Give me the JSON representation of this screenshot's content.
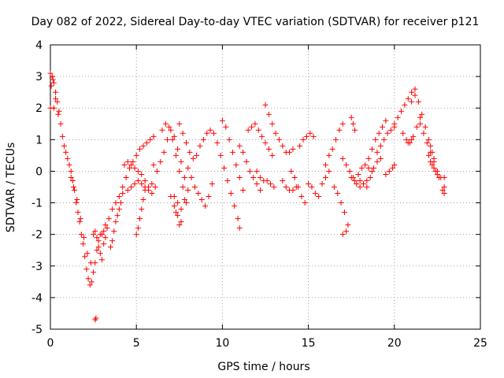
{
  "chart_data": {
    "type": "scatter",
    "title": "Day 082 of 2022, Sidereal Day-to-day VTEC variation (SDTVAR) for receiver p121",
    "xlabel": "GPS time / hours",
    "ylabel": "SDTVAR / TECUs",
    "xlim": [
      0,
      25
    ],
    "ylim": [
      -5,
      4
    ],
    "xticks": [
      0,
      5,
      10,
      15,
      20,
      25
    ],
    "yticks": [
      -5,
      -4,
      -3,
      -2,
      -1,
      0,
      1,
      2,
      3,
      4
    ],
    "xtick_labels": [
      "0",
      "5",
      "10",
      "15",
      "20",
      "25"
    ],
    "ytick_labels": [
      "-5",
      "-4",
      "-3",
      "-2",
      "-1",
      "0",
      "1",
      "2",
      "3",
      "4"
    ],
    "grid": true,
    "marker": "+",
    "color": "#ff0000",
    "series": [
      {
        "name": "SDTVAR",
        "points": [
          [
            0.0,
            3.1
          ],
          [
            0.1,
            3.0
          ],
          [
            0.2,
            2.8
          ],
          [
            0.3,
            2.5
          ],
          [
            0.4,
            2.2
          ],
          [
            0.5,
            1.9
          ],
          [
            0.6,
            1.5
          ],
          [
            0.7,
            1.1
          ],
          [
            0.8,
            0.8
          ],
          [
            0.9,
            0.6
          ],
          [
            0.0,
            2.0
          ],
          [
            0.2,
            2.0
          ],
          [
            0.05,
            2.7
          ],
          [
            0.15,
            2.9
          ],
          [
            0.3,
            2.3
          ],
          [
            0.45,
            1.8
          ],
          [
            1.0,
            0.4
          ],
          [
            1.1,
            0.2
          ],
          [
            1.2,
            0.0
          ],
          [
            1.3,
            -0.3
          ],
          [
            1.4,
            -0.6
          ],
          [
            1.5,
            -1.0
          ],
          [
            1.6,
            -1.3
          ],
          [
            1.7,
            -1.6
          ],
          [
            1.8,
            -2.0
          ],
          [
            1.9,
            -2.3
          ],
          [
            2.0,
            -2.7
          ],
          [
            2.1,
            -3.1
          ],
          [
            2.2,
            -3.4
          ],
          [
            2.3,
            -3.6
          ],
          [
            2.4,
            -3.5
          ],
          [
            2.5,
            -3.2
          ],
          [
            2.6,
            -2.9
          ],
          [
            2.7,
            -2.5
          ],
          [
            2.8,
            -2.2
          ],
          [
            2.9,
            -2.0
          ],
          [
            1.2,
            -0.2
          ],
          [
            1.35,
            -0.5
          ],
          [
            1.55,
            -0.9
          ],
          [
            1.75,
            -1.5
          ],
          [
            1.95,
            -2.1
          ],
          [
            2.15,
            -2.6
          ],
          [
            2.35,
            -2.9
          ],
          [
            2.6,
            -4.7
          ],
          [
            2.65,
            -4.65
          ],
          [
            2.5,
            -2.0
          ],
          [
            2.6,
            -1.9
          ],
          [
            2.7,
            -2.1
          ],
          [
            2.8,
            -2.4
          ],
          [
            2.9,
            -2.6
          ],
          [
            3.0,
            -2.8
          ],
          [
            3.1,
            -2.3
          ],
          [
            3.2,
            -2.1
          ],
          [
            3.3,
            -1.8
          ],
          [
            3.0,
            -2.0
          ],
          [
            3.1,
            -1.9
          ],
          [
            3.2,
            -1.7
          ],
          [
            3.4,
            -1.5
          ],
          [
            3.6,
            -1.2
          ],
          [
            3.8,
            -1.0
          ],
          [
            4.0,
            -0.8
          ],
          [
            4.2,
            -0.7
          ],
          [
            3.5,
            -2.4
          ],
          [
            3.6,
            -2.2
          ],
          [
            3.7,
            -1.9
          ],
          [
            3.8,
            -1.6
          ],
          [
            3.9,
            -1.4
          ],
          [
            4.0,
            -1.2
          ],
          [
            4.1,
            -1.0
          ],
          [
            4.2,
            -0.5
          ],
          [
            4.4,
            -0.2
          ],
          [
            4.6,
            0.1
          ],
          [
            4.8,
            0.3
          ],
          [
            5.0,
            0.5
          ],
          [
            5.2,
            0.7
          ],
          [
            5.4,
            0.8
          ],
          [
            5.6,
            0.9
          ],
          [
            5.8,
            1.0
          ],
          [
            6.0,
            1.1
          ],
          [
            4.3,
            0.2
          ],
          [
            4.5,
            0.3
          ],
          [
            4.7,
            0.2
          ],
          [
            4.9,
            0.1
          ],
          [
            5.1,
            0.0
          ],
          [
            5.3,
            -0.1
          ],
          [
            5.5,
            -0.3
          ],
          [
            5.7,
            -0.5
          ],
          [
            5.9,
            -0.4
          ],
          [
            4.5,
            -0.6
          ],
          [
            4.7,
            -0.5
          ],
          [
            4.9,
            -0.4
          ],
          [
            5.1,
            -0.3
          ],
          [
            5.3,
            -0.4
          ],
          [
            5.5,
            -0.5
          ],
          [
            5.7,
            -0.6
          ],
          [
            5.9,
            -0.7
          ],
          [
            6.1,
            -0.5
          ],
          [
            5.0,
            -2.0
          ],
          [
            5.1,
            -1.8
          ],
          [
            5.2,
            -1.5
          ],
          [
            5.3,
            -1.2
          ],
          [
            5.4,
            -0.9
          ],
          [
            5.5,
            -0.6
          ],
          [
            6.0,
            0.2
          ],
          [
            6.2,
            0.0
          ],
          [
            6.4,
            0.3
          ],
          [
            6.6,
            0.6
          ],
          [
            6.8,
            1.0
          ],
          [
            7.0,
            1.3
          ],
          [
            7.2,
            1.1
          ],
          [
            7.4,
            0.7
          ],
          [
            7.6,
            0.3
          ],
          [
            7.8,
            -0.2
          ],
          [
            6.5,
            1.3
          ],
          [
            6.7,
            1.5
          ],
          [
            6.9,
            1.4
          ],
          [
            7.1,
            1.0
          ],
          [
            7.3,
            0.5
          ],
          [
            7.5,
            0.0
          ],
          [
            7.7,
            -0.5
          ],
          [
            7.9,
            -1.0
          ],
          [
            7.0,
            -0.8
          ],
          [
            7.2,
            -1.1
          ],
          [
            7.4,
            -1.4
          ],
          [
            7.6,
            -1.6
          ],
          [
            7.5,
            -1.7
          ],
          [
            7.3,
            -1.3
          ],
          [
            7.5,
            1.5
          ],
          [
            7.7,
            1.2
          ],
          [
            7.9,
            0.9
          ],
          [
            8.1,
            0.6
          ],
          [
            8.3,
            0.4
          ],
          [
            8.5,
            0.5
          ],
          [
            8.7,
            0.8
          ],
          [
            8.9,
            1.0
          ],
          [
            9.1,
            1.2
          ],
          [
            9.3,
            1.3
          ],
          [
            8.0,
            0.1
          ],
          [
            8.2,
            -0.2
          ],
          [
            8.4,
            -0.5
          ],
          [
            8.6,
            -0.7
          ],
          [
            8.8,
            -0.9
          ],
          [
            9.0,
            -1.1
          ],
          [
            9.2,
            -0.8
          ],
          [
            9.4,
            -0.4
          ],
          [
            7.2,
            -0.8
          ],
          [
            7.4,
            -1.0
          ],
          [
            7.6,
            -1.2
          ],
          [
            7.8,
            -0.9
          ],
          [
            8.0,
            -0.6
          ],
          [
            9.5,
            1.2
          ],
          [
            9.7,
            0.9
          ],
          [
            9.9,
            0.5
          ],
          [
            10.1,
            0.1
          ],
          [
            10.3,
            -0.3
          ],
          [
            10.5,
            -0.7
          ],
          [
            10.7,
            -1.1
          ],
          [
            10.9,
            -1.5
          ],
          [
            11.0,
            -1.8
          ],
          [
            10.0,
            1.6
          ],
          [
            10.2,
            1.4
          ],
          [
            10.4,
            1.0
          ],
          [
            10.6,
            0.6
          ],
          [
            10.8,
            0.2
          ],
          [
            11.0,
            -0.2
          ],
          [
            11.2,
            -0.6
          ],
          [
            11.0,
            0.8
          ],
          [
            11.2,
            0.6
          ],
          [
            11.4,
            0.3
          ],
          [
            11.6,
            0.0
          ],
          [
            11.8,
            -0.2
          ],
          [
            12.0,
            -0.4
          ],
          [
            12.2,
            -0.6
          ],
          [
            11.5,
            1.3
          ],
          [
            11.7,
            1.4
          ],
          [
            11.9,
            1.5
          ],
          [
            12.1,
            1.3
          ],
          [
            12.3,
            1.1
          ],
          [
            12.5,
            0.9
          ],
          [
            12.7,
            0.7
          ],
          [
            12.9,
            0.5
          ],
          [
            12.5,
            2.1
          ],
          [
            12.7,
            1.8
          ],
          [
            12.9,
            1.5
          ],
          [
            13.1,
            1.2
          ],
          [
            13.3,
            1.0
          ],
          [
            13.5,
            0.8
          ],
          [
            13.7,
            0.6
          ],
          [
            13.9,
            0.6
          ],
          [
            14.1,
            0.7
          ],
          [
            12.0,
            0.0
          ],
          [
            12.2,
            -0.2
          ],
          [
            12.4,
            -0.3
          ],
          [
            12.6,
            -0.3
          ],
          [
            12.8,
            -0.4
          ],
          [
            13.0,
            -0.5
          ],
          [
            14.0,
            0.0
          ],
          [
            14.2,
            -0.2
          ],
          [
            14.4,
            -0.5
          ],
          [
            14.6,
            -0.8
          ],
          [
            14.8,
            -1.0
          ],
          [
            14.5,
            0.8
          ],
          [
            14.7,
            1.0
          ],
          [
            14.9,
            1.1
          ],
          [
            15.1,
            1.2
          ],
          [
            15.3,
            1.1
          ],
          [
            13.5,
            -0.3
          ],
          [
            13.7,
            -0.5
          ],
          [
            13.9,
            -0.6
          ],
          [
            14.1,
            -0.6
          ],
          [
            14.3,
            -0.5
          ],
          [
            15.0,
            -0.4
          ],
          [
            15.2,
            -0.5
          ],
          [
            15.4,
            -0.7
          ],
          [
            15.6,
            -0.8
          ],
          [
            15.8,
            -0.4
          ],
          [
            16.0,
            -0.2
          ],
          [
            16.2,
            0.0
          ],
          [
            16.0,
            0.2
          ],
          [
            16.2,
            0.5
          ],
          [
            16.4,
            0.7
          ],
          [
            16.6,
            1.0
          ],
          [
            16.8,
            1.3
          ],
          [
            17.0,
            1.5
          ],
          [
            16.5,
            -0.5
          ],
          [
            16.7,
            -0.7
          ],
          [
            16.9,
            -1.0
          ],
          [
            17.1,
            -1.3
          ],
          [
            17.3,
            -1.7
          ],
          [
            17.2,
            -1.9
          ],
          [
            17.0,
            -2.0
          ],
          [
            17.5,
            1.7
          ],
          [
            17.6,
            1.5
          ],
          [
            17.7,
            1.3
          ],
          [
            17.0,
            0.4
          ],
          [
            17.2,
            0.2
          ],
          [
            17.4,
            0.0
          ],
          [
            17.6,
            -0.2
          ],
          [
            17.8,
            -0.4
          ],
          [
            18.0,
            -0.5
          ],
          [
            18.2,
            -0.4
          ],
          [
            18.4,
            -0.3
          ],
          [
            17.5,
            -0.2
          ],
          [
            17.7,
            -0.3
          ],
          [
            17.9,
            -0.1
          ],
          [
            18.1,
            0.1
          ],
          [
            18.3,
            0.2
          ],
          [
            18.5,
            0.1
          ],
          [
            18.7,
            0.0
          ],
          [
            18.5,
            0.4
          ],
          [
            18.7,
            0.7
          ],
          [
            18.9,
            1.0
          ],
          [
            19.1,
            1.2
          ],
          [
            19.3,
            1.4
          ],
          [
            19.5,
            1.6
          ],
          [
            18.0,
            -0.3
          ],
          [
            18.2,
            -0.4
          ],
          [
            18.4,
            -0.5
          ],
          [
            18.6,
            -0.2
          ],
          [
            18.8,
            0.1
          ],
          [
            19.0,
            0.3
          ],
          [
            19.2,
            0.4
          ],
          [
            19.0,
            0.6
          ],
          [
            19.2,
            0.8
          ],
          [
            19.4,
            1.0
          ],
          [
            19.6,
            1.2
          ],
          [
            19.8,
            1.3
          ],
          [
            20.0,
            1.4
          ],
          [
            19.5,
            -0.1
          ],
          [
            19.7,
            0.0
          ],
          [
            19.9,
            0.1
          ],
          [
            20.0,
            0.2
          ],
          [
            20.0,
            1.5
          ],
          [
            20.2,
            1.7
          ],
          [
            20.4,
            1.9
          ],
          [
            20.6,
            2.1
          ],
          [
            20.8,
            2.3
          ],
          [
            21.0,
            2.5
          ],
          [
            21.2,
            2.6
          ],
          [
            20.5,
            1.2
          ],
          [
            20.7,
            1.0
          ],
          [
            20.9,
            0.9
          ],
          [
            21.1,
            1.1
          ],
          [
            21.3,
            1.4
          ],
          [
            21.5,
            1.7
          ],
          [
            21.0,
            2.2
          ],
          [
            21.2,
            2.4
          ],
          [
            21.4,
            2.2
          ],
          [
            21.6,
            1.8
          ],
          [
            21.8,
            1.4
          ],
          [
            22.0,
            1.0
          ],
          [
            22.1,
            0.8
          ],
          [
            22.2,
            0.6
          ],
          [
            22.3,
            0.4
          ],
          [
            22.0,
            0.5
          ],
          [
            22.1,
            0.3
          ],
          [
            22.2,
            0.2
          ],
          [
            22.3,
            0.1
          ],
          [
            22.4,
            0.0
          ],
          [
            22.5,
            -0.1
          ],
          [
            22.6,
            -0.2
          ],
          [
            21.5,
            1.5
          ],
          [
            21.7,
            1.2
          ],
          [
            21.9,
            0.9
          ],
          [
            22.1,
            0.6
          ],
          [
            22.3,
            0.3
          ],
          [
            22.5,
            0.0
          ],
          [
            22.7,
            -0.2
          ],
          [
            20.8,
            0.9
          ],
          [
            21.0,
            1.0
          ],
          [
            22.9,
            -0.2
          ],
          [
            22.9,
            -0.5
          ],
          [
            22.9,
            -0.7
          ],
          [
            22.8,
            -0.6
          ]
        ]
      }
    ]
  }
}
